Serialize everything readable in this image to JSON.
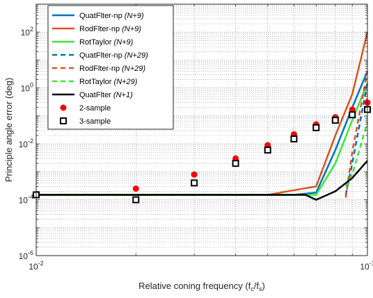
{
  "chart_data": {
    "type": "line",
    "xlabel": "Relative coning frequency (f_c/f_s)",
    "xlabel_parts": {
      "main": "Relative coning frequency (f",
      "sub1": "c",
      "slash": "/f",
      "sub2": "s",
      "close": ")"
    },
    "ylabel": "Principle angle error (deg)",
    "xscale": "log",
    "yscale": "log",
    "xlim": [
      0.01,
      0.1
    ],
    "ylim": [
      1e-06,
      1000.0
    ],
    "grid": true,
    "legend_position": "top-left",
    "x_ticks": [
      {
        "value": 0.01,
        "base": "10",
        "exp": "-2"
      },
      {
        "value": 0.1,
        "base": "10",
        "exp": "-1"
      }
    ],
    "y_ticks": [
      {
        "value": 1e-06,
        "base": "10",
        "exp": "-6"
      },
      {
        "value": 0.0001,
        "base": "10",
        "exp": "-4"
      },
      {
        "value": 0.01,
        "base": "10",
        "exp": "-2"
      },
      {
        "value": 1,
        "base": "10",
        "exp": "0"
      },
      {
        "value": 100,
        "base": "10",
        "exp": "2"
      }
    ],
    "series": [
      {
        "name": "QuatFlter-np",
        "suffix": "(N+9)",
        "color": "#0072BD",
        "style": "solid",
        "kind": "line",
        "x": [
          0.01,
          0.02,
          0.03,
          0.04,
          0.05,
          0.06,
          0.07,
          0.08,
          0.09,
          0.1
        ],
        "y": [
          0.00015,
          0.00015,
          0.00015,
          0.00015,
          0.00015,
          0.00015,
          0.00018,
          0.006,
          0.2,
          4
        ]
      },
      {
        "name": "RodFlter-np",
        "suffix": "(N+9)",
        "color": "#D95319",
        "style": "solid",
        "kind": "line",
        "x": [
          0.01,
          0.02,
          0.03,
          0.04,
          0.05,
          0.06,
          0.07,
          0.08,
          0.09,
          0.1
        ],
        "y": [
          0.00015,
          0.00015,
          0.00015,
          0.00015,
          0.00015,
          0.00022,
          0.0003,
          0.02,
          0.6,
          100
        ]
      },
      {
        "name": "RotTaylor",
        "suffix": "(N+9)",
        "color": "#39E639",
        "style": "solid",
        "kind": "line",
        "x": [
          0.01,
          0.02,
          0.03,
          0.04,
          0.05,
          0.06,
          0.07,
          0.08,
          0.09,
          0.1
        ],
        "y": [
          0.00015,
          0.00015,
          0.00015,
          0.00015,
          0.00015,
          0.00015,
          0.00015,
          0.002,
          0.07,
          1.5
        ]
      },
      {
        "name": "QuatFlter-np",
        "suffix": "(N+29)",
        "color": "#0072BD",
        "style": "dashed",
        "kind": "line",
        "x": [
          0.086,
          0.09,
          0.1
        ],
        "y": [
          0.00015,
          0.002,
          1.5
        ]
      },
      {
        "name": "RodFlter-np",
        "suffix": "(N+29)",
        "color": "#D95319",
        "style": "dashed",
        "kind": "line",
        "x": [
          0.086,
          0.09,
          0.1
        ],
        "y": [
          0.00012,
          0.005,
          4
        ]
      },
      {
        "name": "RotTaylor",
        "suffix": "(N+29)",
        "color": "#39E639",
        "style": "dashed",
        "kind": "line",
        "x": [
          0.086,
          0.09,
          0.1
        ],
        "y": [
          0.0003,
          0.0008,
          0.06
        ]
      },
      {
        "name": "QuatFlter",
        "suffix": "(N+1)",
        "color": "#000000",
        "style": "solid",
        "kind": "line",
        "x": [
          0.01,
          0.02,
          0.03,
          0.04,
          0.05,
          0.06,
          0.065,
          0.07,
          0.08,
          0.09,
          0.1
        ],
        "y": [
          0.00015,
          0.00015,
          0.00015,
          0.00015,
          0.00015,
          0.00015,
          0.00015,
          0.0001,
          0.0002,
          0.0006,
          0.0025
        ]
      },
      {
        "name": "2-sample",
        "suffix": "",
        "color": "#FF0000",
        "style": "marker-dot",
        "kind": "marker",
        "x": [
          0.01,
          0.02,
          0.03,
          0.04,
          0.05,
          0.06,
          0.07,
          0.08,
          0.09,
          0.1
        ],
        "y": [
          0.00015,
          0.00025,
          0.0008,
          0.003,
          0.009,
          0.022,
          0.05,
          0.09,
          0.17,
          0.3
        ]
      },
      {
        "name": "3-sample",
        "suffix": "",
        "color": "#000000",
        "style": "marker-square",
        "kind": "marker",
        "x": [
          0.01,
          0.02,
          0.03,
          0.04,
          0.05,
          0.06,
          0.07,
          0.08,
          0.09,
          0.1
        ],
        "y": [
          0.00015,
          0.0001,
          0.0004,
          0.002,
          0.006,
          0.015,
          0.038,
          0.07,
          0.11,
          0.17
        ]
      }
    ]
  }
}
